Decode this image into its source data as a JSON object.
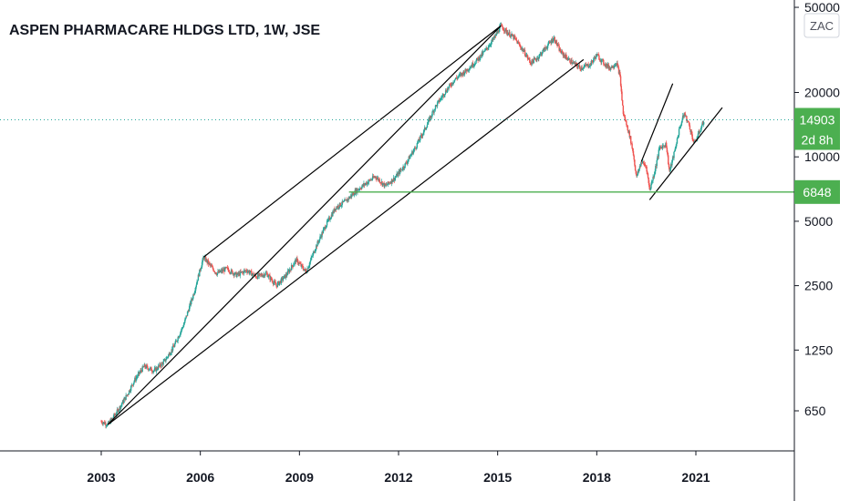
{
  "chart_data": {
    "type": "candlestick",
    "title": "ASPEN PHARMACARE HLDGS LTD, 1W, JSE",
    "currency": "ZAC",
    "y_scale": "log",
    "y_ticks": [
      650,
      1250,
      2500,
      5000,
      10000,
      20000,
      50000
    ],
    "y_tick_labels": [
      "650",
      "1250",
      "2500",
      "5000",
      "10000",
      "20000",
      "50000"
    ],
    "x_ticks": [
      2003,
      2006,
      2009,
      2012,
      2015,
      2018,
      2021
    ],
    "x_tick_labels": [
      "2003",
      "2006",
      "2009",
      "2012",
      "2015",
      "2018",
      "2021"
    ],
    "last_price": 14903,
    "last_price_label": "14903",
    "countdown_label": "2d 8h",
    "support_level": 6848,
    "support_label": "6848",
    "price_path": [
      [
        2003.0,
        580
      ],
      [
        2003.2,
        560
      ],
      [
        2003.5,
        650
      ],
      [
        2003.8,
        780
      ],
      [
        2004.0,
        900
      ],
      [
        2004.3,
        1050
      ],
      [
        2004.6,
        1000
      ],
      [
        2004.9,
        1100
      ],
      [
        2005.2,
        1300
      ],
      [
        2005.5,
        1650
      ],
      [
        2005.8,
        2300
      ],
      [
        2006.0,
        3000
      ],
      [
        2006.1,
        3400
      ],
      [
        2006.3,
        3100
      ],
      [
        2006.5,
        2850
      ],
      [
        2006.8,
        3000
      ],
      [
        2007.1,
        2800
      ],
      [
        2007.4,
        2950
      ],
      [
        2007.7,
        2750
      ],
      [
        2008.0,
        2850
      ],
      [
        2008.3,
        2500
      ],
      [
        2008.6,
        2800
      ],
      [
        2008.9,
        3300
      ],
      [
        2009.2,
        2900
      ],
      [
        2009.5,
        3800
      ],
      [
        2009.8,
        4800
      ],
      [
        2010.1,
        5800
      ],
      [
        2010.4,
        6200
      ],
      [
        2010.7,
        6900
      ],
      [
        2011.0,
        7500
      ],
      [
        2011.3,
        8100
      ],
      [
        2011.6,
        7300
      ],
      [
        2011.9,
        8000
      ],
      [
        2012.2,
        9200
      ],
      [
        2012.5,
        11000
      ],
      [
        2012.8,
        13500
      ],
      [
        2013.1,
        17000
      ],
      [
        2013.4,
        20000
      ],
      [
        2013.7,
        23000
      ],
      [
        2014.0,
        25000
      ],
      [
        2014.3,
        27500
      ],
      [
        2014.6,
        31000
      ],
      [
        2014.9,
        36000
      ],
      [
        2015.1,
        41000
      ],
      [
        2015.3,
        38000
      ],
      [
        2015.5,
        36000
      ],
      [
        2015.8,
        31000
      ],
      [
        2016.0,
        27500
      ],
      [
        2016.2,
        29000
      ],
      [
        2016.5,
        33000
      ],
      [
        2016.7,
        36000
      ],
      [
        2016.9,
        31000
      ],
      [
        2017.2,
        28000
      ],
      [
        2017.5,
        26000
      ],
      [
        2017.8,
        27000
      ],
      [
        2018.0,
        30000
      ],
      [
        2018.2,
        27500
      ],
      [
        2018.4,
        26000
      ],
      [
        2018.6,
        27500
      ],
      [
        2018.7,
        24000
      ],
      [
        2018.8,
        16000
      ],
      [
        2019.0,
        12500
      ],
      [
        2019.1,
        10500
      ],
      [
        2019.2,
        8000
      ],
      [
        2019.35,
        9500
      ],
      [
        2019.5,
        9000
      ],
      [
        2019.6,
        7000
      ],
      [
        2019.75,
        8500
      ],
      [
        2019.9,
        11000
      ],
      [
        2020.1,
        11500
      ],
      [
        2020.2,
        8500
      ],
      [
        2020.35,
        10500
      ],
      [
        2020.5,
        13500
      ],
      [
        2020.65,
        16000
      ],
      [
        2020.8,
        14000
      ],
      [
        2020.95,
        11500
      ],
      [
        2021.1,
        13000
      ],
      [
        2021.25,
        14903
      ]
    ],
    "trend_lines": [
      {
        "name": "",
        "points": [
          [
            2003.2,
            560
          ],
          [
            2015.1,
            41000
          ]
        ]
      },
      {
        "name": "",
        "points": [
          [
            2006.1,
            3400
          ],
          [
            2015.1,
            41000
          ]
        ]
      },
      {
        "name": "",
        "points": [
          [
            2003.2,
            560
          ],
          [
            2017.6,
            28500
          ]
        ]
      },
      {
        "name": "",
        "points": [
          [
            2019.35,
            9500
          ],
          [
            2020.3,
            22000
          ]
        ]
      },
      {
        "name": "",
        "points": [
          [
            2019.6,
            6300
          ],
          [
            2021.8,
            17000
          ]
        ]
      }
    ],
    "colors": {
      "up": "#26a69a",
      "down": "#ef5350",
      "support": "#4caf50",
      "last": "#4caf50",
      "trend": "#000000",
      "price_line": "#26a69a"
    },
    "grid": false
  }
}
